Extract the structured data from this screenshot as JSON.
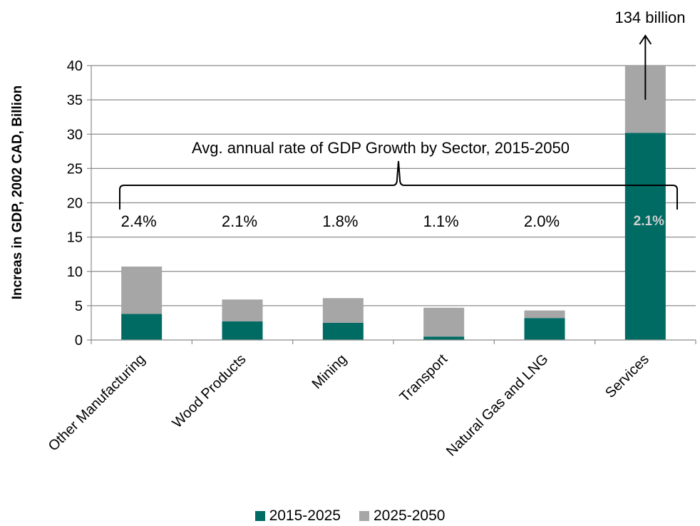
{
  "chart_data": {
    "type": "bar",
    "stacked": true,
    "categories": [
      "Other Manufacturing",
      "Wood Products",
      "Mining",
      "Transport",
      "Natural Gas and LNG",
      "Services"
    ],
    "series": [
      {
        "name": "2015-2025",
        "color": "#006b63",
        "values": [
          3.8,
          2.7,
          2.5,
          0.5,
          3.2,
          30.2
        ]
      },
      {
        "name": "2025-2050",
        "color": "#a6a6a6",
        "values": [
          6.9,
          3.2,
          3.6,
          4.2,
          1.1,
          9.8
        ]
      }
    ],
    "ylabel": "Increas in GDP, 2002 CAD, Billion",
    "ylim": [
      0,
      40
    ],
    "yticks": [
      0,
      5,
      10,
      15,
      20,
      25,
      30,
      35,
      40
    ],
    "grid": true,
    "legend_position": "bottom",
    "annotations": {
      "bracket_label": "Avg. annual rate of GDP Growth by Sector, 2015-2050",
      "growth_rates": [
        "2.4%",
        "2.1%",
        "1.8%",
        "1.1%",
        "2.0%",
        "2.1%"
      ],
      "overflow_label": "134 billion"
    }
  }
}
